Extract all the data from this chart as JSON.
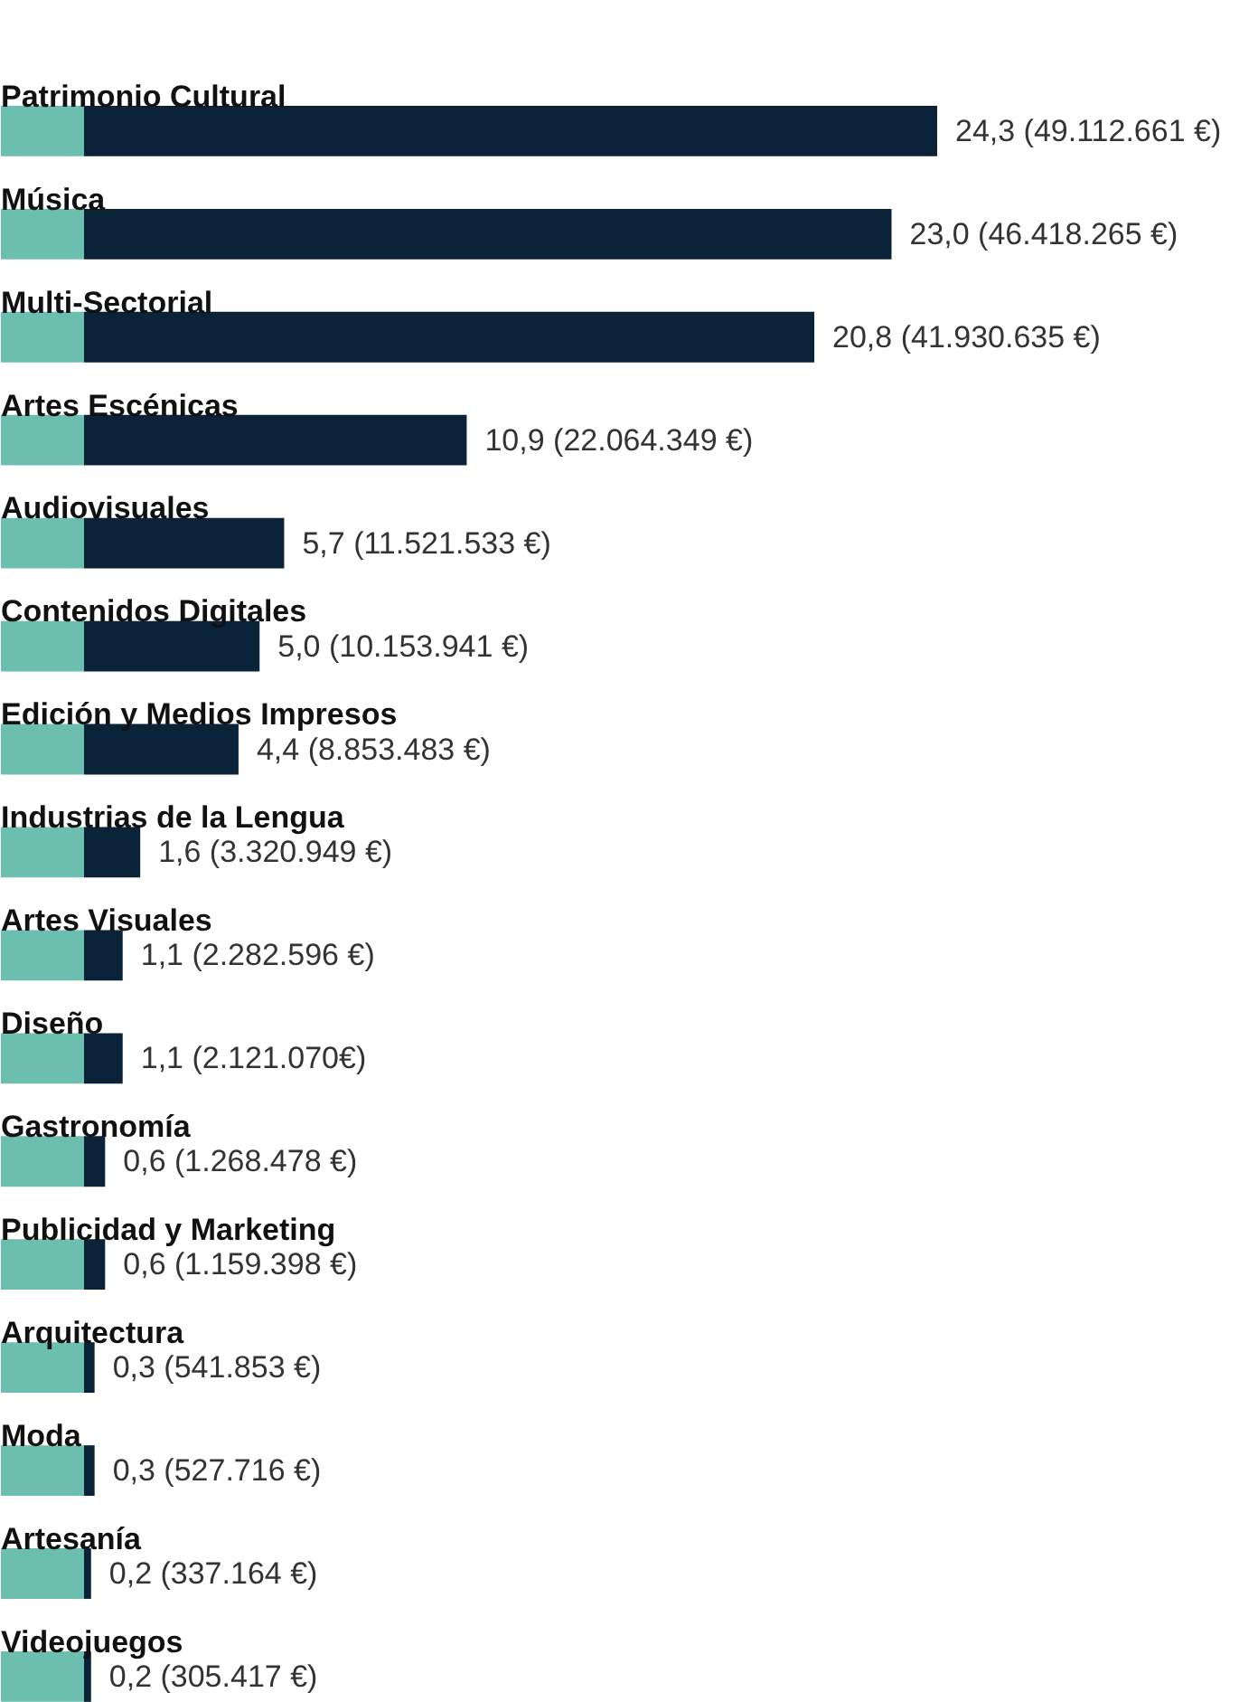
{
  "chart_data": {
    "type": "bar",
    "orientation": "horizontal",
    "categories": [
      "Patrimonio Cultural",
      "Música",
      "Multi-Sectorial",
      "Artes Escénicas",
      "Audiovisuales",
      "Contenidos Digitales",
      "Edición y Medios Impresos",
      "Industrias de la Lengua",
      "Artes Visuales",
      "Diseño",
      "Gastronomía",
      "Publicidad y Marketing",
      "Arquitectura",
      "Moda",
      "Artesanía",
      "Videojuegos"
    ],
    "values": [
      24.3,
      23.0,
      20.8,
      10.9,
      5.7,
      5.0,
      4.4,
      1.6,
      1.1,
      1.1,
      0.6,
      0.6,
      0.3,
      0.3,
      0.2,
      0.2
    ],
    "value_labels": [
      "24,3 (49.112.661 €)",
      "23,0 (46.418.265 €)",
      "20,8 (41.930.635 €)",
      "10,9 (22.064.349 €)",
      "5,7 (11.521.533 €)",
      "5,0 (10.153.941 €)",
      "4,4 (8.853.483 €)",
      "1,6 (3.320.949 €)",
      "1,1 (2.282.596 €)",
      "1,1 (2.121.070€)",
      "0,6 (1.268.478 €)",
      "0,6 (1.159.398 €)",
      "0,3 (541.853 €)",
      "0,3 (527.716 €)",
      "0,2 (337.164 €)",
      "0,2 (305.417 €)"
    ],
    "color": "#0a2339",
    "grid": false
  }
}
